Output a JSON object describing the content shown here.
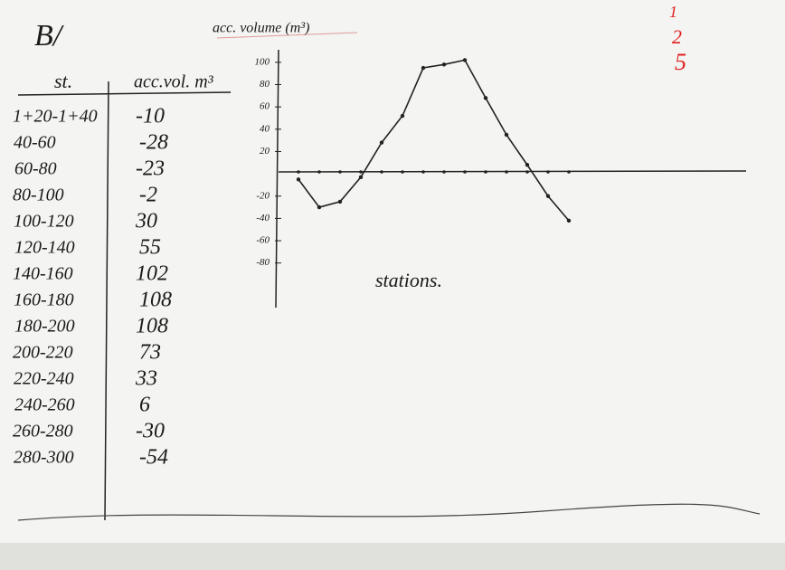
{
  "header": {
    "title": "B/"
  },
  "table": {
    "columns": [
      "st.",
      "acc.vol. m³"
    ],
    "rows": [
      [
        "1+20-1+40",
        "-10"
      ],
      [
        "40-60",
        "-28"
      ],
      [
        "60-80",
        "-23"
      ],
      [
        "80-100",
        "-2"
      ],
      [
        "100-120",
        "30"
      ],
      [
        "120-140",
        "55"
      ],
      [
        "140-160",
        "102"
      ],
      [
        "160-180",
        "108"
      ],
      [
        "180-200",
        "108"
      ],
      [
        "200-220",
        "73"
      ],
      [
        "220-240",
        "33"
      ],
      [
        "240-260",
        "6"
      ],
      [
        "260-280",
        "-30"
      ],
      [
        "280-300",
        "-54"
      ]
    ]
  },
  "chart_data": {
    "type": "line",
    "title": "acc. volume (m³)",
    "x_label": "stations.",
    "values": [
      -5,
      -30,
      -25,
      -3,
      28,
      52,
      95,
      98,
      102,
      68,
      35,
      8,
      -20,
      -42
    ],
    "color": "#222222",
    "ylim": [
      -120,
      108
    ],
    "yticks": [
      100,
      80,
      60,
      40,
      20,
      -20,
      -40,
      -60,
      -80
    ]
  },
  "red_notes": [
    "1",
    "2",
    "5"
  ]
}
